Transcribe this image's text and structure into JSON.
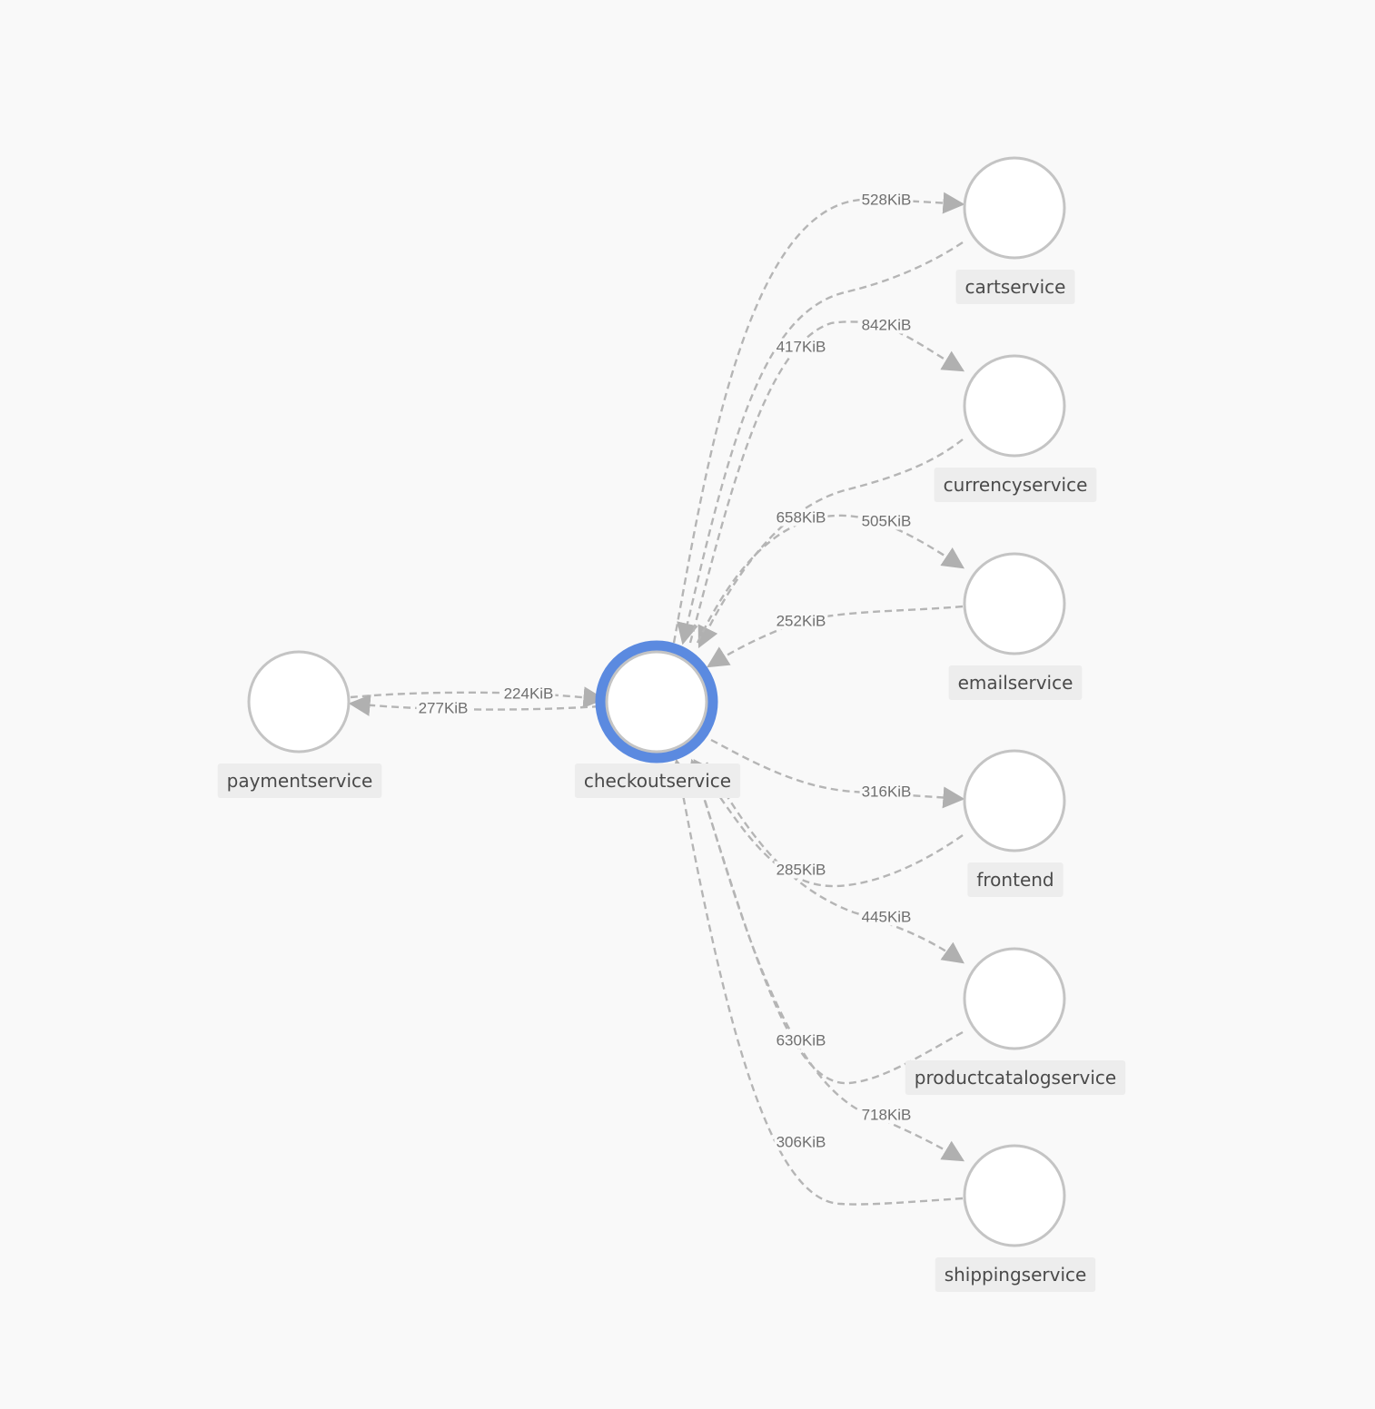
{
  "graph": {
    "focus_node": "checkoutservice",
    "colors": {
      "focus_ring": "#5b8ae0",
      "node_fill": "#ffffff",
      "node_stroke": "#c4c4c4",
      "edge": "#b5b5b5",
      "label_bg": "#ededed",
      "background": "#f9f9f9"
    },
    "nodes": [
      {
        "id": "paymentservice",
        "label": "paymentservice"
      },
      {
        "id": "checkoutservice",
        "label": "checkoutservice"
      },
      {
        "id": "cartservice",
        "label": "cartservice"
      },
      {
        "id": "currencyservice",
        "label": "currencyservice"
      },
      {
        "id": "emailservice",
        "label": "emailservice"
      },
      {
        "id": "frontend",
        "label": "frontend"
      },
      {
        "id": "productcatalogservice",
        "label": "productcatalogservice"
      },
      {
        "id": "shippingservice",
        "label": "shippingservice"
      }
    ],
    "edges": [
      {
        "from": "checkoutservice",
        "to": "cartservice",
        "label": "528KiB"
      },
      {
        "from": "cartservice",
        "to": "checkoutservice",
        "label": "417KiB"
      },
      {
        "from": "checkoutservice",
        "to": "currencyservice",
        "label": "842KiB"
      },
      {
        "from": "currencyservice",
        "to": "checkoutservice",
        "label": "658KiB"
      },
      {
        "from": "checkoutservice",
        "to": "emailservice",
        "label": "505KiB"
      },
      {
        "from": "emailservice",
        "to": "checkoutservice",
        "label": "252KiB"
      },
      {
        "from": "checkoutservice",
        "to": "frontend",
        "label": "316KiB"
      },
      {
        "from": "frontend",
        "to": "checkoutservice",
        "label": "285KiB"
      },
      {
        "from": "checkoutservice",
        "to": "productcatalogservice",
        "label": "445KiB"
      },
      {
        "from": "productcatalogservice",
        "to": "checkoutservice",
        "label": "630KiB"
      },
      {
        "from": "checkoutservice",
        "to": "shippingservice",
        "label": "718KiB"
      },
      {
        "from": "shippingservice",
        "to": "checkoutservice",
        "label": "306KiB"
      },
      {
        "from": "paymentservice",
        "to": "checkoutservice",
        "label": "224KiB"
      },
      {
        "from": "checkoutservice",
        "to": "paymentservice",
        "label": "277KiB"
      }
    ]
  }
}
